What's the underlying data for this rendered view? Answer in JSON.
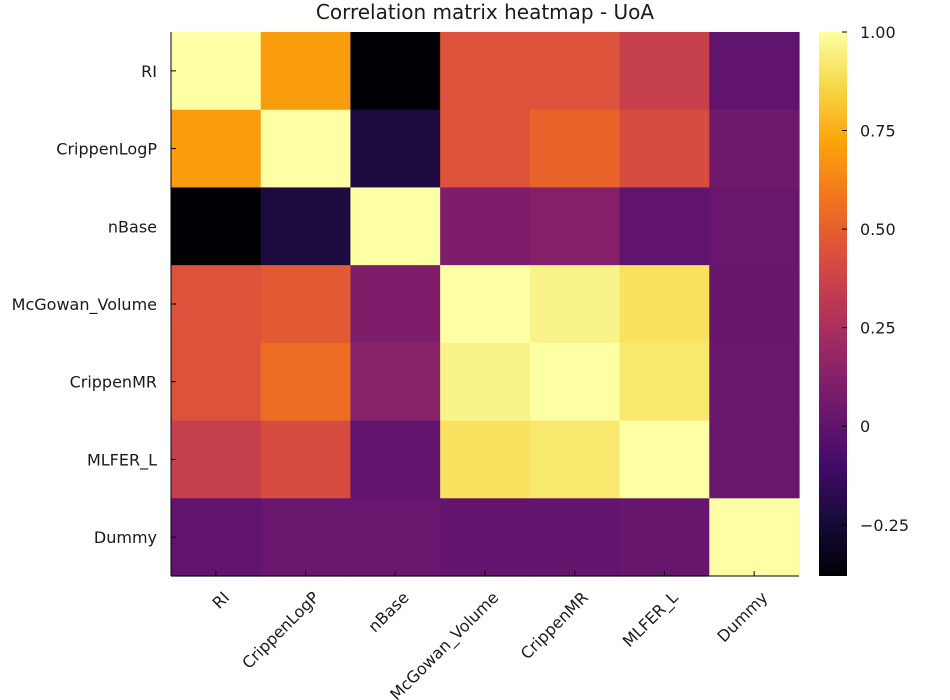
{
  "chart_data": {
    "type": "heatmap",
    "title": "Correlation matrix heatmap - UoA",
    "xlabel": "",
    "ylabel": "",
    "categories": [
      "RI",
      "CrippenLogP",
      "nBase",
      "McGowan_Volume",
      "CrippenMR",
      "MLFER_L",
      "Dummy"
    ],
    "values": [
      [
        1.0,
        0.7,
        -0.38,
        0.45,
        0.45,
        0.35,
        0.0
      ],
      [
        0.7,
        1.0,
        -0.22,
        0.45,
        0.52,
        0.42,
        0.05
      ],
      [
        -0.38,
        -0.22,
        1.0,
        0.1,
        0.12,
        0.0,
        0.03
      ],
      [
        0.45,
        0.48,
        0.1,
        1.0,
        0.96,
        0.9,
        0.02
      ],
      [
        0.45,
        0.55,
        0.14,
        0.96,
        1.0,
        0.92,
        0.03
      ],
      [
        0.35,
        0.42,
        0.0,
        0.9,
        0.92,
        1.0,
        0.03
      ],
      [
        0.0,
        0.03,
        0.03,
        0.01,
        0.01,
        0.02,
        1.0
      ]
    ],
    "colorbar": {
      "colormap": "inferno",
      "range": [
        -0.38,
        1.0
      ],
      "ticks": [
        1.0,
        0.75,
        0.5,
        0.25,
        0.0,
        -0.25
      ],
      "tick_labels": [
        "1.00",
        "0.75",
        "0.50",
        "0.25",
        "0",
        "−0.25"
      ]
    },
    "grid": false,
    "legend": "colorbar-right"
  }
}
